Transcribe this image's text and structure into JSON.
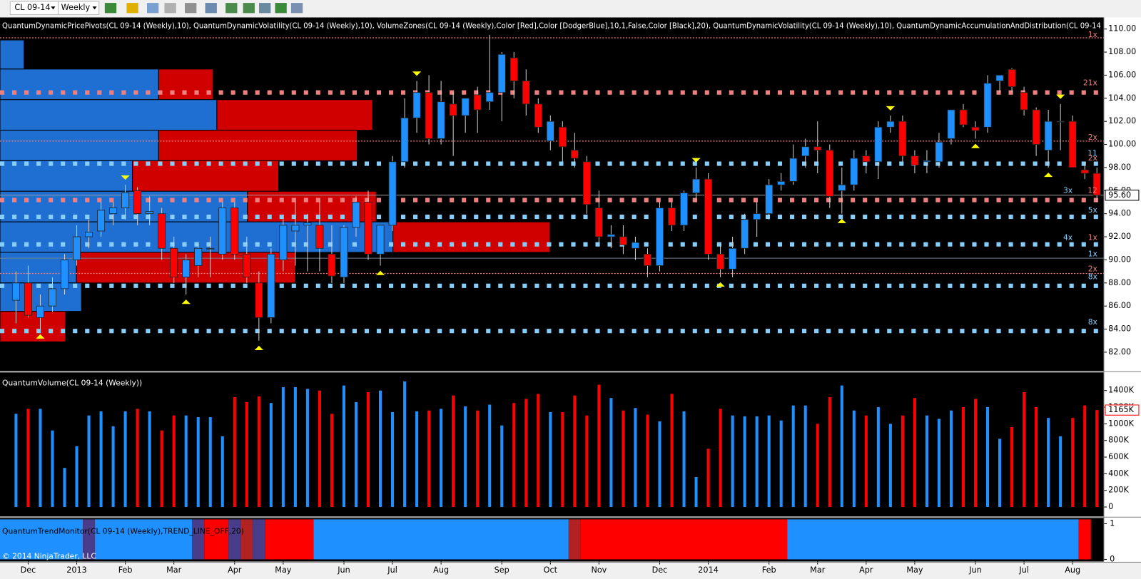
{
  "toolbar": {
    "symbol": "CL 09-14",
    "interval": "Weekly"
  },
  "copyright": "© 2014 NinjaTrader, LLC",
  "chart_data": [
    {
      "type": "candlestick",
      "title": "QuantumDynamicPricePivots(CL 09-14 (Weekly),10), QuantumDynamicVolatility(CL 09-14 (Weekly),10), VolumeZones(CL 09-14 (Weekly),Color [Red],Color [DodgerBlue],10,1,False,Color [Black],20), QuantumDynamicVolatility(CL 09-14 (Weekly),10), QuantumDynamicAccumulationAndDistribution(CL 09-14",
      "categories": [
        null,
        "Dec",
        null,
        null,
        null,
        "2013",
        null,
        null,
        null,
        "Feb",
        null,
        null,
        null,
        "Mar",
        null,
        null,
        null,
        null,
        "Apr",
        null,
        null,
        null,
        "May",
        null,
        null,
        null,
        null,
        "Jun",
        null,
        null,
        null,
        "Jul",
        null,
        null,
        null,
        "Aug",
        null,
        null,
        null,
        null,
        "Sep",
        null,
        null,
        null,
        "Oct",
        null,
        null,
        null,
        "Nov",
        null,
        null,
        null,
        null,
        "Dec",
        null,
        null,
        null,
        "2014",
        null,
        null,
        null,
        null,
        "Feb",
        null,
        null,
        null,
        "Mar",
        null,
        null,
        null,
        "Apr",
        null,
        null,
        null,
        "May",
        null,
        null,
        null,
        null,
        "Jun",
        null,
        null,
        null,
        "Jul",
        null,
        null,
        null,
        "Aug",
        null,
        null
      ],
      "open": [
        86.5,
        88,
        85,
        86,
        87.5,
        90,
        92,
        92.5,
        94,
        94.5,
        96,
        94,
        94,
        91,
        88.5,
        89.5,
        91,
        90.5,
        94.5,
        90.5,
        88,
        85,
        90,
        92.5,
        93,
        93,
        90.5,
        88.5,
        92.8,
        95,
        90.5,
        93,
        98.5,
        102.3,
        104.5,
        100.5,
        103.5,
        102.5,
        104.3,
        103.7,
        104.5,
        107.5,
        105.5,
        103.5,
        100.3,
        101.5,
        99.5,
        98.5,
        94.5,
        92,
        92,
        91,
        90.5,
        89.5,
        94.5,
        93,
        95.8,
        97,
        90.5,
        89.2,
        91,
        93.5,
        94,
        96.5,
        96.8,
        99,
        99.8,
        99.5,
        96,
        96.5,
        99,
        98.5,
        101.5,
        102,
        99,
        98.5,
        98.5,
        100.5,
        103,
        101.5,
        101.5,
        105.5,
        106.5,
        104.5,
        103,
        99.5,
        102,
        102,
        97.8,
        97.5
      ],
      "high": [
        89,
        89.5,
        87,
        88.5,
        90.5,
        93,
        93.5,
        95,
        95,
        96.5,
        96.3,
        95.5,
        94.5,
        92,
        90.5,
        91.5,
        92,
        95,
        95,
        92,
        89,
        91,
        93.5,
        95,
        94,
        95,
        93,
        93,
        95.5,
        96,
        93,
        99,
        104,
        105.5,
        106,
        105.5,
        104.5,
        104,
        105,
        109.5,
        108,
        108,
        106.5,
        104,
        102.5,
        102,
        101,
        99,
        96,
        93,
        93,
        92,
        91,
        95,
        95,
        96,
        98,
        97.5,
        91.5,
        92,
        94,
        95,
        97,
        97.5,
        100,
        100.5,
        102,
        100,
        98,
        99.5,
        99.5,
        102,
        102.5,
        102.5,
        99.5,
        99.5,
        101,
        103,
        103.5,
        102,
        106,
        106,
        106.6,
        105,
        103.2,
        103,
        103.5,
        102.5,
        98.5,
        98
      ],
      "low": [
        84.5,
        85,
        84,
        85.5,
        87,
        89.5,
        91,
        92,
        93,
        93.5,
        93,
        93,
        90,
        88,
        87,
        88.5,
        88.5,
        90,
        90,
        88,
        83,
        84.5,
        89,
        89.5,
        89,
        89,
        88,
        88,
        92,
        90,
        89.5,
        92.5,
        98,
        101,
        100,
        100,
        99,
        101,
        101,
        103,
        102,
        104,
        102.5,
        101,
        99.5,
        98.5,
        98,
        94,
        91.5,
        91,
        90.5,
        90,
        88.5,
        89,
        92.5,
        92.5,
        95,
        90,
        88.5,
        88.5,
        90.5,
        92,
        93.5,
        96,
        96.5,
        98,
        97.5,
        94.5,
        94,
        96,
        97.5,
        97,
        101,
        98.5,
        97.5,
        97.5,
        98,
        100,
        101.5,
        100.5,
        101,
        104.5,
        104.5,
        102.5,
        99,
        98,
        99.5,
        98,
        97,
        95
      ],
      "close": [
        88,
        85.2,
        86,
        87.5,
        90,
        92,
        92.4,
        94.3,
        94.5,
        95.8,
        94,
        94.2,
        91,
        88.5,
        90,
        91,
        91,
        94.5,
        90.5,
        88.5,
        85,
        90.5,
        93,
        93,
        93.2,
        91,
        88.6,
        92.8,
        95,
        90.5,
        93,
        98.5,
        102.3,
        104.5,
        100.5,
        103.7,
        102.5,
        104,
        103,
        104.5,
        107.8,
        105.5,
        103.5,
        101.5,
        102,
        99.8,
        98.8,
        94.8,
        92,
        92.2,
        91.3,
        91.5,
        89.5,
        94.5,
        93,
        95.8,
        97,
        90.5,
        89.2,
        91,
        93.5,
        94,
        96.5,
        96.8,
        98.8,
        99.8,
        99.5,
        95.5,
        96.5,
        98.8,
        98.5,
        101.5,
        102,
        99,
        98.2,
        98.6,
        100.2,
        103,
        101.7,
        101.2,
        105.3,
        106,
        105,
        103,
        100,
        102,
        102,
        98,
        97.5,
        95.6
      ],
      "up_color": "#1e90ff",
      "down_color": "#ff0000",
      "ylim": [
        80.5,
        111
      ],
      "yticks": [
        {
          "value": 82,
          "label": "82.00"
        },
        {
          "value": 84,
          "label": "84.00"
        },
        {
          "value": 86,
          "label": "86.00"
        },
        {
          "value": 88,
          "label": "88.00"
        },
        {
          "value": 90,
          "label": "90.00"
        },
        {
          "value": 92,
          "label": "92.00"
        },
        {
          "value": 94,
          "label": "94.00"
        },
        {
          "value": 96,
          "label": "96.00"
        },
        {
          "value": 98,
          "label": "98.00"
        },
        {
          "value": 100,
          "label": "100.00"
        },
        {
          "value": 102,
          "label": "102.00"
        },
        {
          "value": 104,
          "label": "104.00"
        },
        {
          "value": 106,
          "label": "106.00"
        },
        {
          "value": 108,
          "label": "108.00"
        },
        {
          "value": 110,
          "label": "110.00"
        }
      ],
      "last_price": {
        "value": 95.6,
        "label": "95.60"
      },
      "zone_colors": [
        "#1f6fd3",
        "#d10000"
      ],
      "zones": [
        {
          "low": 106.53,
          "high": 109.05,
          "blue": 33,
          "red": 0
        },
        {
          "low": 103.88,
          "high": 106.53,
          "blue": 218,
          "red": 75
        },
        {
          "low": 101.23,
          "high": 103.88,
          "blue": 298,
          "red": 214
        },
        {
          "low": 98.59,
          "high": 101.23,
          "blue": 218,
          "red": 273
        },
        {
          "low": 95.94,
          "high": 98.59,
          "blue": 182,
          "red": 201
        },
        {
          "low": 93.29,
          "high": 95.94,
          "blue": 340,
          "red": 177
        },
        {
          "low": 90.65,
          "high": 93.29,
          "blue": 540,
          "red": 216
        },
        {
          "low": 88.0,
          "high": 90.65,
          "blue": 105,
          "red": 301
        },
        {
          "low": 85.54,
          "high": 88.0,
          "blue": 112,
          "red": 0
        },
        {
          "low": 82.9,
          "high": 85.54,
          "blue": 0,
          "red": 90
        }
      ],
      "levels": [
        {
          "value": 109.24,
          "color": "#f08080",
          "style": "thin"
        },
        {
          "value": 104.5,
          "color": "#f08080",
          "style": "thick"
        },
        {
          "value": 100.29,
          "color": "#f08080",
          "style": "thin"
        },
        {
          "value": 98.33,
          "color": "#87cefa",
          "style": "thick"
        },
        {
          "value": 95.18,
          "color": "#f08080",
          "style": "thick"
        },
        {
          "value": 93.73,
          "color": "#87cefa",
          "style": "thick"
        },
        {
          "value": 91.34,
          "color": "#87cefa",
          "style": "thick"
        },
        {
          "value": 90.14,
          "color": "#708090",
          "style": "solid"
        },
        {
          "value": 88.82,
          "color": "#f08080",
          "style": "thin"
        },
        {
          "value": 87.75,
          "color": "#87cefa",
          "style": "thick"
        },
        {
          "value": 83.84,
          "color": "#87cefa",
          "style": "thick"
        }
      ],
      "level_labels": [
        {
          "value": 109.5,
          "label": "1x",
          "color": "#f08080"
        },
        {
          "value": 105.3,
          "label": "21x",
          "color": "#f08080"
        },
        {
          "value": 100.6,
          "label": "2x",
          "color": "#f08080"
        },
        {
          "value": 99.2,
          "label": "11",
          "color": "#87cefa"
        },
        {
          "value": 98.8,
          "label": "2x",
          "color": "#f08080"
        },
        {
          "value": 96.0,
          "label": "3x",
          "color": "#87cefa"
        },
        {
          "value": 96.0,
          "label": "12",
          "color": "#f08080"
        },
        {
          "value": 94.3,
          "label": "5x",
          "color": "#87cefa"
        },
        {
          "value": 91.9,
          "label": "4x",
          "color": "#87cefa"
        },
        {
          "value": 91.9,
          "label": "1x",
          "color": "#f08080"
        },
        {
          "value": 90.5,
          "label": "1x",
          "color": "#87cefa"
        },
        {
          "value": 89.2,
          "label": "2x",
          "color": "#f08080"
        },
        {
          "value": 88.5,
          "label": "8x",
          "color": "#87cefa"
        },
        {
          "value": 84.6,
          "label": "8x",
          "color": "#87cefa"
        }
      ],
      "pivot_color": "#ffff00",
      "pivots_high": [
        9,
        33,
        56,
        72,
        86
      ],
      "pivots_low": [
        2,
        14,
        20,
        30,
        58,
        68,
        79,
        85
      ]
    },
    {
      "type": "bar",
      "title": "QuantumVolume(CL 09-14 (Weekly))",
      "values": [
        1120,
        1180,
        1180,
        920,
        470,
        730,
        1100,
        1150,
        970,
        1150,
        1180,
        1150,
        920,
        1100,
        1100,
        1080,
        1080,
        850,
        1320,
        1260,
        1330,
        1250,
        1440,
        1440,
        1420,
        1400,
        1120,
        1460,
        1260,
        1380,
        1400,
        1140,
        1510,
        1150,
        1160,
        1180,
        1340,
        1210,
        1160,
        1230,
        980,
        1250,
        1300,
        1360,
        1140,
        1140,
        1340,
        1100,
        1470,
        1310,
        1160,
        1190,
        1110,
        1030,
        1360,
        1150,
        360,
        700,
        1180,
        1100,
        1090,
        1090,
        1100,
        1040,
        1220,
        1220,
        1000,
        1320,
        1460,
        1160,
        1100,
        1200,
        1000,
        1100,
        1310,
        1100,
        1060,
        1160,
        1200,
        1300,
        1200,
        820,
        960,
        1380,
        1200,
        1070,
        850,
        1070,
        1220,
        1165
      ],
      "ylim": [
        -96,
        1600
      ],
      "yticks": [
        0,
        {
          "value": 200,
          "label": "200K"
        },
        {
          "value": 400,
          "label": "400K"
        },
        {
          "value": 600,
          "label": "600K"
        },
        {
          "value": 800,
          "label": "800K"
        },
        {
          "value": 1000,
          "label": "1000K"
        },
        {
          "value": 1200,
          "label": "1200K"
        },
        {
          "value": 1400,
          "label": "1400K"
        }
      ],
      "last_value": {
        "value": 1165,
        "label": "1165K"
      }
    },
    {
      "type": "band",
      "title": "QuantumTrendMonitor(CL 09-14 (Weekly),TREND_LINE_OFF,20)",
      "segments": [
        {
          "start": 0,
          "end": 6,
          "color": "#1e90ff"
        },
        {
          "start": 6,
          "end": 7,
          "color": "#483d8b"
        },
        {
          "start": 7,
          "end": 15,
          "color": "#1e90ff"
        },
        {
          "start": 15,
          "end": 16,
          "color": "#483d8b"
        },
        {
          "start": 16,
          "end": 18,
          "color": "#ff0000"
        },
        {
          "start": 18,
          "end": 19,
          "color": "#483d8b"
        },
        {
          "start": 19,
          "end": 20,
          "color": "#b22222"
        },
        {
          "start": 20,
          "end": 21,
          "color": "#483d8b"
        },
        {
          "start": 21,
          "end": 25,
          "color": "#ff0000"
        },
        {
          "start": 25,
          "end": 46,
          "color": "#1e90ff"
        },
        {
          "start": 46,
          "end": 47,
          "color": "#b22222"
        },
        {
          "start": 47,
          "end": 64,
          "color": "#ff0000"
        },
        {
          "start": 64,
          "end": 88,
          "color": "#1e90ff"
        },
        {
          "start": 88,
          "end": 89,
          "color": "#ff0000"
        }
      ],
      "ylim": [
        0,
        1
      ],
      "yticks": [
        0,
        1
      ]
    }
  ]
}
